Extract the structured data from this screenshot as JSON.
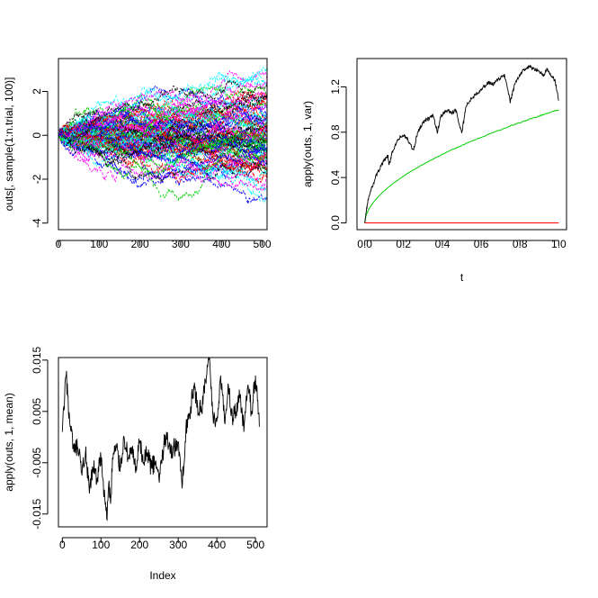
{
  "chart_data": [
    {
      "type": "line",
      "title": "",
      "xlabel": "",
      "ylabel": "outs[, sample(1:n.trial, 100)]",
      "xlim": [
        0,
        512
      ],
      "ylim": [
        -4.3,
        3.5
      ],
      "x_ticks": [
        "0",
        "100",
        "200",
        "300",
        "400",
        "500"
      ],
      "y_ticks": [
        "-4",
        "-2",
        "0",
        "2"
      ],
      "n_points": 513,
      "series_count": 100,
      "series_colors": [
        "#000000",
        "#ff0000",
        "#00cd00",
        "#0000ff",
        "#00ffff",
        "#ff00ff"
      ],
      "line_style": "dashed",
      "grid": false,
      "legend": "none"
    },
    {
      "type": "line",
      "title": "",
      "xlabel": "t",
      "ylabel": "apply(outs, 1, var)",
      "xlim": [
        -0.04,
        1.04
      ],
      "ylim": [
        -0.06,
        1.45
      ],
      "x_ticks": [
        "0.0",
        "0.2",
        "0.4",
        "0.6",
        "0.8",
        "1.0"
      ],
      "y_ticks": [
        "0.0",
        "0.4",
        "0.8",
        "1.2"
      ],
      "series": [
        {
          "color": "#000000",
          "x": [
            0,
            0.01,
            0.02,
            0.04,
            0.06,
            0.08,
            0.1,
            0.12,
            0.125,
            0.14,
            0.16,
            0.18,
            0.2,
            0.22,
            0.25,
            0.27,
            0.29,
            0.31,
            0.33,
            0.35,
            0.375,
            0.39,
            0.41,
            0.43,
            0.45,
            0.47,
            0.5,
            0.52,
            0.55,
            0.58,
            0.6,
            0.62,
            0.64,
            0.66,
            0.68,
            0.7,
            0.72,
            0.75,
            0.77,
            0.79,
            0.81,
            0.83,
            0.85,
            0.87,
            0.9,
            0.92,
            0.94,
            0.96,
            0.98,
            1.0
          ],
          "y": [
            0.0,
            0.13,
            0.22,
            0.33,
            0.42,
            0.49,
            0.55,
            0.59,
            0.5,
            0.62,
            0.69,
            0.75,
            0.77,
            0.74,
            0.64,
            0.78,
            0.86,
            0.9,
            0.92,
            0.95,
            0.8,
            0.93,
            0.98,
            0.99,
            0.97,
            0.99,
            0.78,
            1.02,
            1.1,
            1.15,
            1.18,
            1.21,
            1.24,
            1.22,
            1.25,
            1.28,
            1.3,
            1.07,
            1.2,
            1.28,
            1.33,
            1.36,
            1.38,
            1.35,
            1.34,
            1.3,
            1.35,
            1.3,
            1.26,
            1.08
          ]
        },
        {
          "color": "#00cd00",
          "function": "t",
          "x": [
            0,
            1
          ],
          "y": [
            0,
            1
          ]
        },
        {
          "color": "#ff0000",
          "function": "0",
          "x": [
            0,
            1
          ],
          "y": [
            0,
            0
          ]
        }
      ],
      "grid": false,
      "legend": "none"
    },
    {
      "type": "line",
      "title": "",
      "xlabel": "Index",
      "ylabel": "apply(outs, 1, mean)",
      "xlim": [
        -10,
        530
      ],
      "ylim": [
        -0.0175,
        0.0155
      ],
      "x_ticks": [
        "0",
        "100",
        "200",
        "300",
        "400",
        "500"
      ],
      "y_ticks": [
        "-0.015",
        "-0.005",
        "0.005",
        "0.015"
      ],
      "series": [
        {
          "color": "#000000",
          "x": [
            0,
            10,
            20,
            30,
            40,
            50,
            60,
            70,
            80,
            90,
            100,
            110,
            115,
            120,
            125,
            130,
            140,
            150,
            160,
            170,
            180,
            190,
            200,
            210,
            220,
            230,
            240,
            250,
            260,
            270,
            280,
            290,
            300,
            310,
            320,
            330,
            340,
            350,
            360,
            370,
            380,
            390,
            400,
            410,
            420,
            430,
            440,
            450,
            460,
            470,
            480,
            490,
            500,
            510
          ],
          "y": [
            0.001,
            0.012,
            0.002,
            -0.003,
            -0.002,
            -0.007,
            -0.003,
            -0.011,
            -0.006,
            -0.008,
            -0.004,
            -0.012,
            -0.016,
            -0.009,
            -0.013,
            -0.004,
            -0.002,
            -0.006,
            0.0,
            -0.004,
            -0.002,
            -0.007,
            -0.001,
            -0.005,
            -0.003,
            -0.006,
            -0.005,
            -0.008,
            -0.003,
            0.001,
            -0.003,
            -0.002,
            -0.001,
            -0.01,
            0.002,
            0.004,
            0.01,
            0.006,
            0.005,
            0.011,
            0.015,
            0.004,
            0.003,
            0.012,
            0.003,
            0.01,
            0.004,
            0.005,
            0.008,
            0.001,
            0.01,
            0.005,
            0.012,
            0.002
          ]
        }
      ],
      "grid": false,
      "legend": "none"
    }
  ]
}
